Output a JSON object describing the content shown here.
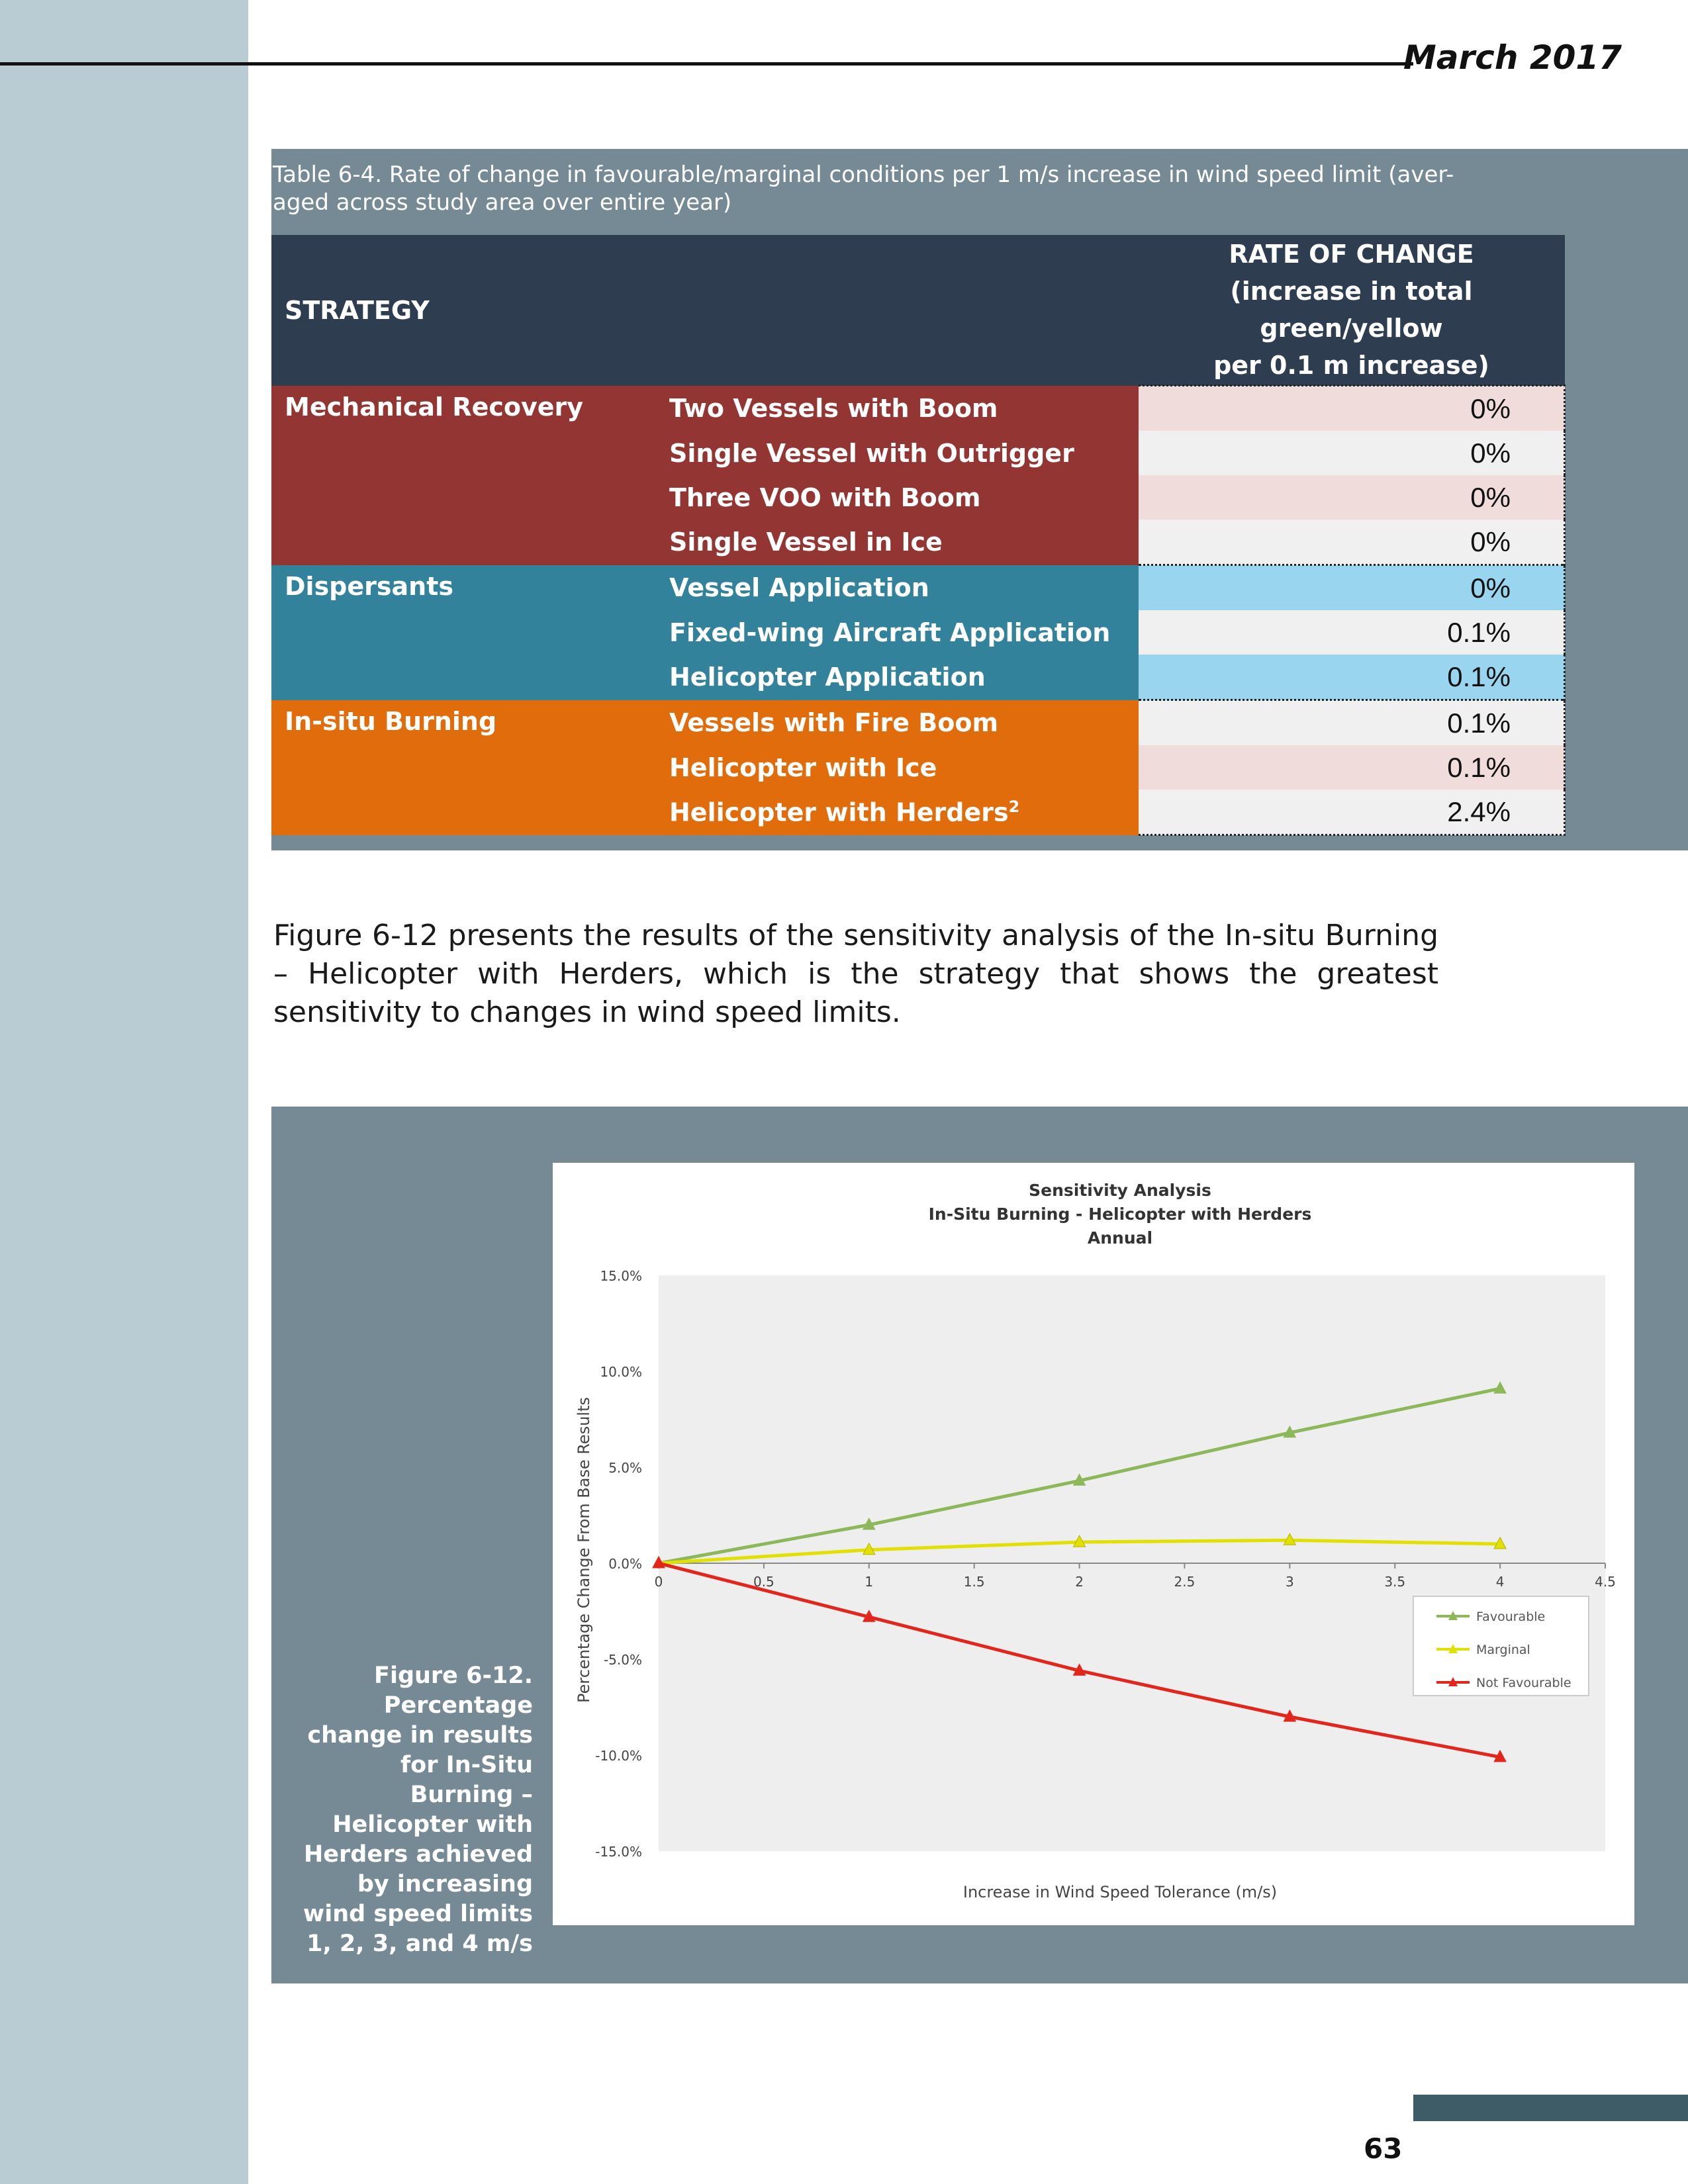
{
  "header": {
    "date": "March 2017"
  },
  "table": {
    "caption": "Table 6-4. Rate of change in favourable/marginal conditions per 1 m/s increase in wind speed limit (aver-aged across study area over entire year)",
    "col_strategy": "STRATEGY",
    "col_rate_line1": "RATE OF CHANGE",
    "col_rate_line2": "(increase in total green/yellow",
    "col_rate_line3": "per 0.1 m increase)",
    "groups": [
      {
        "name": "Mechanical Recovery",
        "rows": [
          {
            "label": "Two Vessels with Boom",
            "value": "0%"
          },
          {
            "label": "Single Vessel with Outrigger",
            "value": "0%"
          },
          {
            "label": "Three VOO with Boom",
            "value": "0%"
          },
          {
            "label": "Single Vessel in Ice",
            "value": "0%"
          }
        ]
      },
      {
        "name": "Dispersants",
        "rows": [
          {
            "label": "Vessel Application",
            "value": "0%"
          },
          {
            "label": "Fixed-wing Aircraft Application",
            "value": "0.1%"
          },
          {
            "label": "Helicopter Application",
            "value": "0.1%"
          }
        ]
      },
      {
        "name": "In-situ Burning",
        "rows": [
          {
            "label": "Vessels with Fire Boom",
            "value": "0.1%"
          },
          {
            "label": "Helicopter with Ice",
            "value": "0.1%"
          },
          {
            "label": "Helicopter with Herders",
            "sup": "2",
            "value": "2.4%"
          }
        ]
      }
    ]
  },
  "body": {
    "paragraph": "Figure 6-12 presents the results of the sensitivity analysis of the In-situ Burning – Helicopter with Herders, which is the strategy that shows the greatest sensitivity to changes in wind speed limits."
  },
  "figure": {
    "caption_label": "Figure 6-12.",
    "caption_text": "Percentage change in results for In-Situ Burning – Helicopter with Herders achieved by increasing wind speed limits 1, 2, 3, and 4 m/s"
  },
  "chart_data": {
    "type": "line",
    "title_lines": [
      "Sensitivity Analysis",
      "In-Situ Burning - Helicopter with Herders",
      "Annual"
    ],
    "xlabel": "Increase in Wind Speed Tolerance (m/s)",
    "ylabel": "Percentage Change From Base Results",
    "xlim": [
      0,
      4.5
    ],
    "ylim": [
      -15,
      15
    ],
    "x_ticks": [
      "0",
      "0.5",
      "1",
      "1.5",
      "2",
      "2.5",
      "3",
      "3.5",
      "4",
      "4.5"
    ],
    "y_ticks": [
      "15.0%",
      "10.0%",
      "5.0%",
      "0.0%",
      "-5.0%",
      "-10.0%",
      "-15.0%"
    ],
    "x": [
      0,
      1,
      2,
      3,
      4
    ],
    "series": [
      {
        "name": "Favourable",
        "color": "#8cb85a",
        "values": [
          0,
          2.0,
          4.3,
          6.8,
          9.1
        ]
      },
      {
        "name": "Marginal",
        "color": "#e2e000",
        "values": [
          0,
          0.7,
          1.1,
          1.2,
          1.0
        ]
      },
      {
        "name": "Not Favourable",
        "color": "#e3261c",
        "values": [
          0,
          -2.8,
          -5.6,
          -8.0,
          -10.1
        ]
      }
    ],
    "legend_position": "right"
  },
  "footer": {
    "page_number": "63"
  }
}
